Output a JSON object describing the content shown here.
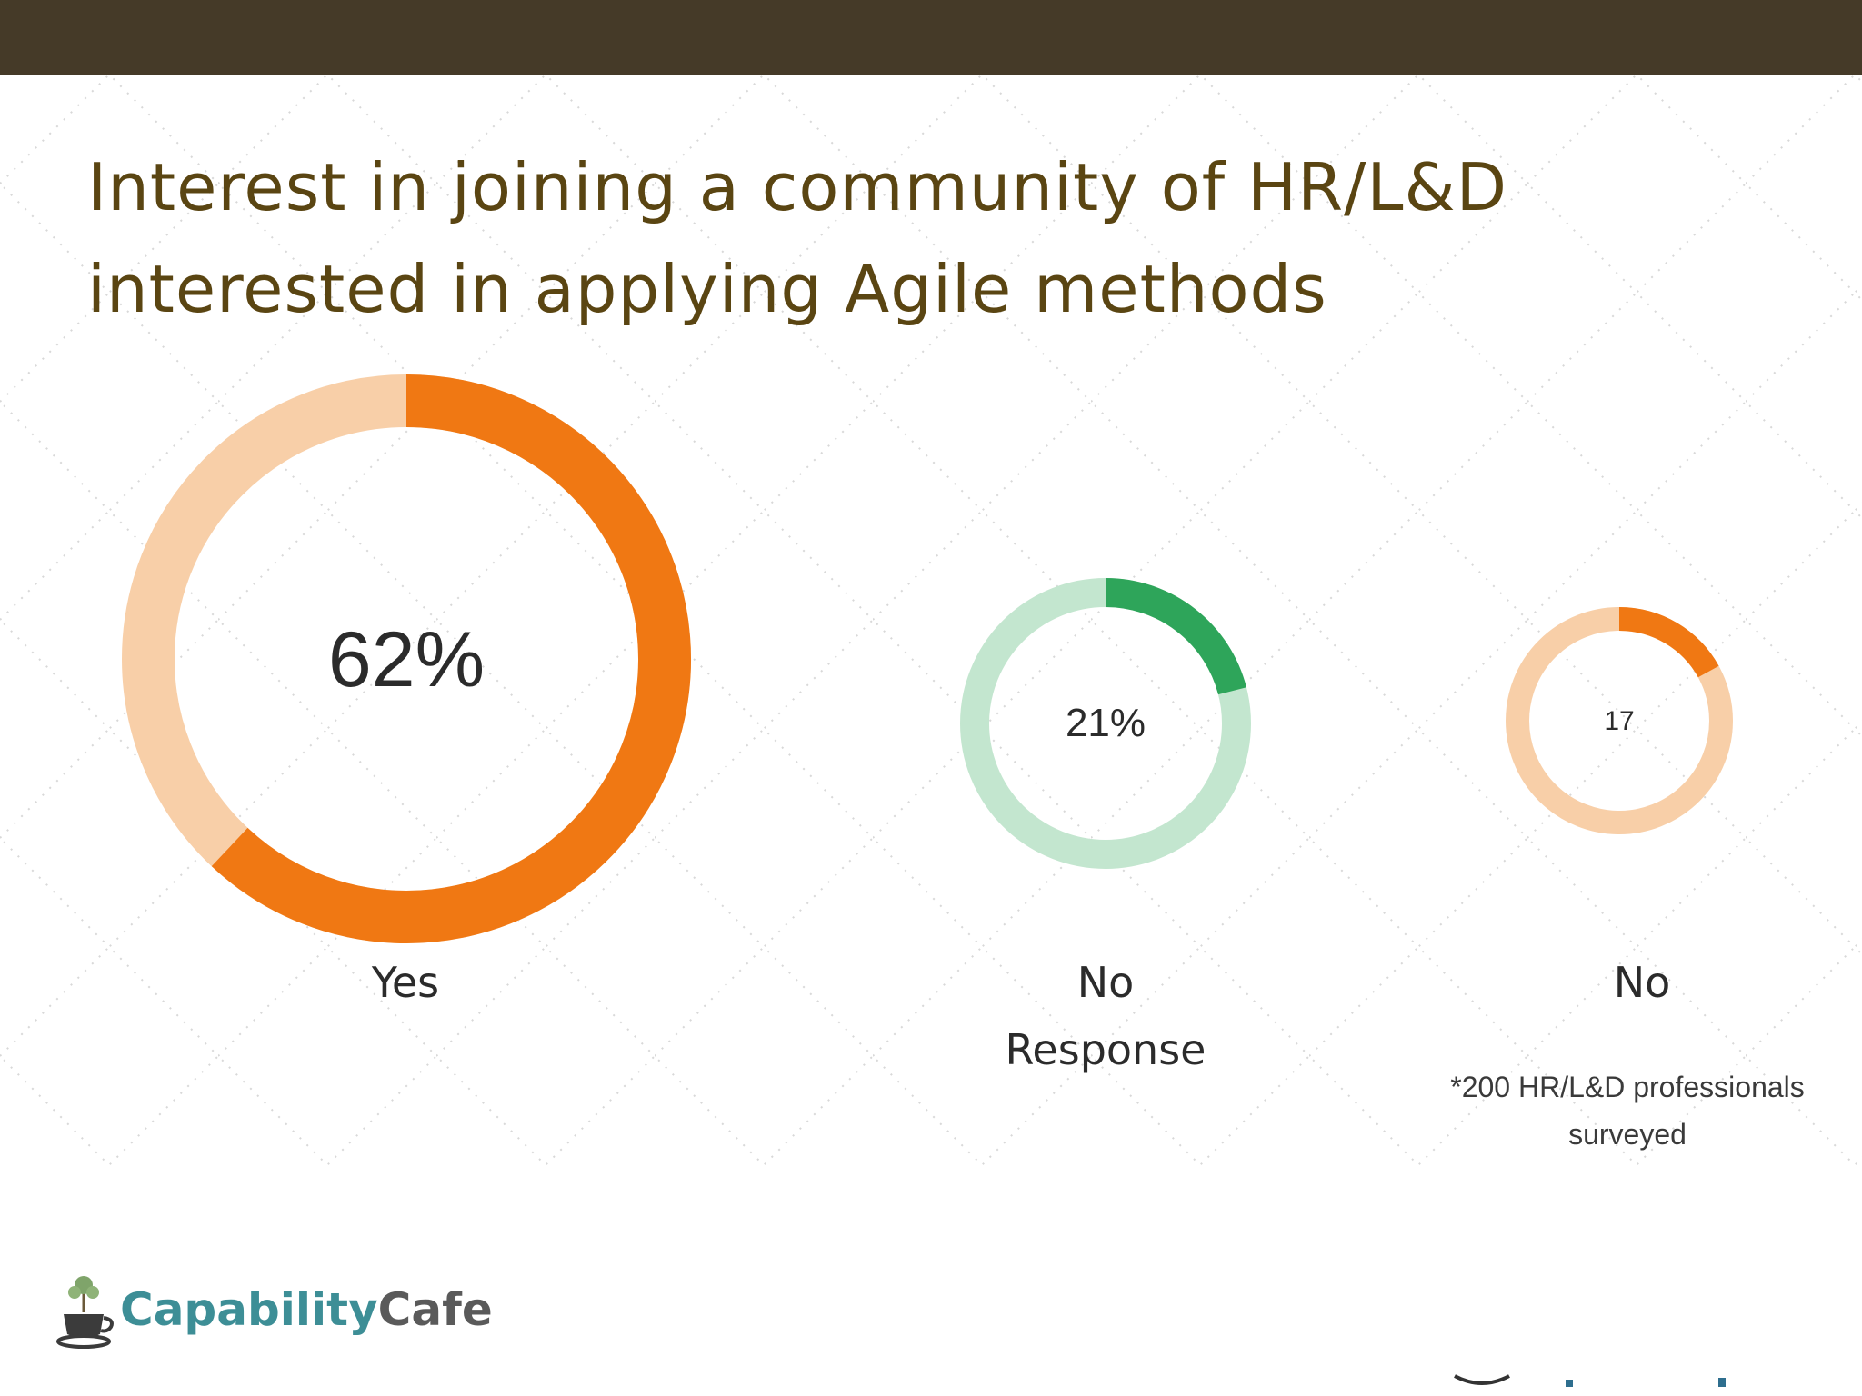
{
  "header": {
    "band_color": "#453a28"
  },
  "title_lines": [
    "Interest in joining a community of HR/L&D",
    "interested in applying Agile methods"
  ],
  "chart_data": {
    "type": "pie",
    "chart_style": "donut",
    "title": "Interest in joining a community of HR/L&D interested in applying Agile methods",
    "items": [
      {
        "category": "Yes",
        "value": 62,
        "center_label": "62%",
        "label_lines": [
          "Yes"
        ],
        "color": "#f07813",
        "track_color": "#f8cfa8"
      },
      {
        "category": "No Response",
        "value": 21,
        "center_label": "21%",
        "label_lines": [
          "No",
          "Response"
        ],
        "color": "#2ea55a",
        "track_color": "#c3e6cf"
      },
      {
        "category": "No",
        "value": 17,
        "center_label": "17",
        "label_lines": [
          "No"
        ],
        "color": "#f07813",
        "track_color": "#f8cfa8"
      }
    ],
    "note_lines": [
      "*200 HR/L&D professionals",
      "surveyed"
    ]
  },
  "logo": {
    "word1": "Capability",
    "word2": "Cafe",
    "icon": "coffee-cup-tree-icon"
  },
  "colors": {
    "title": "#5a4512",
    "accent_orange": "#f07813",
    "accent_green": "#2ea55a"
  }
}
